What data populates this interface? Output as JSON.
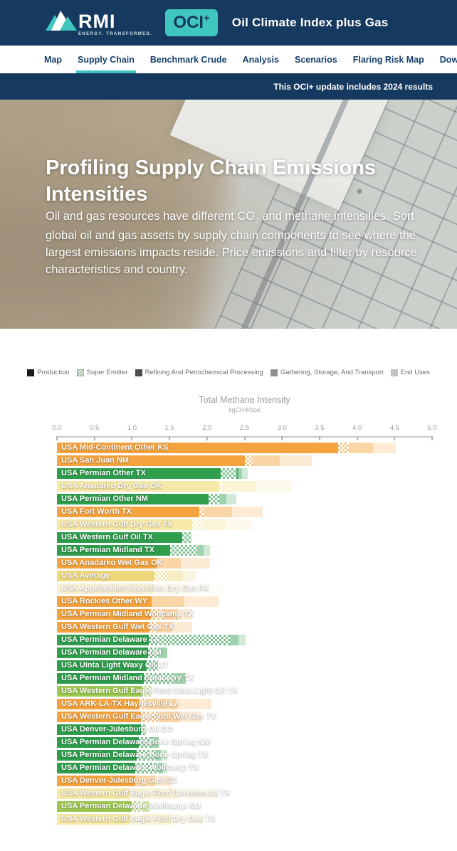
{
  "header": {
    "rmi_name": "RMI",
    "rmi_tagline": "ENERGY. TRANSFORMED.",
    "oci_badge": "OCI",
    "oci_badge_plus": "+",
    "title": "Oil Climate Index plus Gas"
  },
  "nav": {
    "items": [
      {
        "label": "Map",
        "active": false
      },
      {
        "label": "Supply Chain",
        "active": true
      },
      {
        "label": "Benchmark Crude",
        "active": false
      },
      {
        "label": "Analysis",
        "active": false
      },
      {
        "label": "Scenarios",
        "active": false
      },
      {
        "label": "Flaring Risk Map",
        "active": false
      },
      {
        "label": "Download",
        "active": false,
        "icon": "download-icon"
      }
    ]
  },
  "banner": {
    "text": "This OCI+ update includes 2024 results"
  },
  "hero": {
    "title": "Profiling Supply Chain Emissions Intensities",
    "desc_pre": "Oil and gas resources have different CO",
    "desc_sub": "2",
    "desc_post": " and methane intensities. Sort global oil and gas assets by supply chain components to see where the largest emissions impacts reside. Price emissions and filter by resource characteristics and country."
  },
  "chart_data": {
    "type": "bar",
    "orientation": "horizontal",
    "title": "Total Methane Intensity",
    "unit": "kgCH4/boe",
    "xlim": [
      0,
      5
    ],
    "x_ticks": [
      0.0,
      0.5,
      1.0,
      1.5,
      2.0,
      2.5,
      3.0,
      3.5,
      4.0,
      4.5,
      5.0
    ],
    "legend": [
      {
        "label": "Production",
        "rgb": "26,26,26",
        "pattern": "solid"
      },
      {
        "label": "Super Emitter",
        "rgb": "122,150,124",
        "pattern": "checker"
      },
      {
        "label": "Refining And Petrochemical Processing",
        "rgb": "77,77,77",
        "pattern": "solid"
      },
      {
        "label": "Gathering, Storage, And Transport",
        "rgb": "143,143,143",
        "pattern": "solid"
      },
      {
        "label": "End Uses",
        "rgb": "196,196,196",
        "pattern": "solid"
      }
    ],
    "series_labels": [
      "Production",
      "Super Emitter",
      "Refining And Petrochemical Processing",
      "Gathering, Storage, And Transport",
      "End Uses"
    ],
    "color_families": {
      "orange": "244,163,62",
      "green": "47,158,77",
      "paleYellow": "246,232,166",
      "yellow": "239,216,123",
      "cream": "250,241,213",
      "yellowGreen": "156,201,79"
    },
    "rows": [
      {
        "label": "USA Mid-Continent Other KS",
        "family": "orange",
        "values": [
          3.75,
          0.14,
          0,
          0.32,
          0.31
        ]
      },
      {
        "label": "USA San Juan NM",
        "family": "orange",
        "values": [
          2.5,
          0.11,
          0,
          0.36,
          0.43
        ]
      },
      {
        "label": "USA Permian Other TX",
        "family": "green",
        "values": [
          2.18,
          0.21,
          0.03,
          0.05,
          0.07
        ]
      },
      {
        "label": "USA Anadarko Dry Gas OK",
        "family": "paleYellow",
        "values": [
          2.16,
          0.05,
          0,
          0.45,
          0.47
        ]
      },
      {
        "label": "USA Permian Other NM",
        "family": "green",
        "values": [
          2.02,
          0.14,
          0,
          0.1,
          0.13
        ]
      },
      {
        "label": "USA Fort Worth TX",
        "family": "orange",
        "values": [
          1.9,
          0.06,
          0,
          0.37,
          0.41
        ]
      },
      {
        "label": "USA Western Gulf Dry Gas TX",
        "family": "paleYellow",
        "values": [
          1.8,
          0.16,
          0,
          0.29,
          0.34
        ]
      },
      {
        "label": "USA Western Gulf Oil TX",
        "family": "green",
        "values": [
          1.67,
          0.12,
          0,
          0,
          0
        ]
      },
      {
        "label": "USA Permian Midland TX",
        "family": "green",
        "values": [
          1.51,
          0.36,
          0,
          0.08,
          0.09
        ]
      },
      {
        "label": "USA Anadarko Wet Gas OK",
        "family": "orange",
        "values": [
          1.33,
          0,
          0,
          0.32,
          0.39
        ]
      },
      {
        "label": "USA Average",
        "family": "yellow",
        "values": [
          1.3,
          0.16,
          0,
          0.22,
          0.17
        ]
      },
      {
        "label": "USA Appalachian Marcellus Dry Gas PA",
        "family": "cream",
        "values": [
          1.28,
          0.03,
          0,
          0.45,
          0.45
        ]
      },
      {
        "label": "USA Rockies Other WY",
        "family": "orange",
        "values": [
          1.26,
          0,
          0,
          0.44,
          0.46
        ]
      },
      {
        "label": "USA Permian Midland Wolfcamp TX",
        "family": "orange",
        "values": [
          1.25,
          0.17,
          0,
          0.19,
          0.19
        ]
      },
      {
        "label": "USA Western Gulf Wet Gas TX",
        "family": "orange",
        "values": [
          1.23,
          0.12,
          0,
          0.19,
          0.26
        ]
      },
      {
        "label": "USA Permian Delaware TX",
        "family": "green",
        "values": [
          1.22,
          1.09,
          0,
          0.11,
          0.09
        ]
      },
      {
        "label": "USA Permian Delaware NM",
        "family": "green",
        "values": [
          1.21,
          0.14,
          0,
          0.12,
          0
        ]
      },
      {
        "label": "USA Uinta Light Waxy Oil UT",
        "family": "green",
        "values": [
          1.2,
          0.15,
          0,
          0,
          0
        ]
      },
      {
        "label": "USA Permian Midland Spraberry TX",
        "family": "green",
        "values": [
          1.16,
          0.41,
          0,
          0.15,
          0
        ]
      },
      {
        "label": "USA Western Gulf Eagle Ford Ultra-Light Oil TX",
        "family": "yellowGreen",
        "values": [
          1.14,
          0.12,
          0,
          0,
          0
        ]
      },
      {
        "label": "USA ARK-LA-TX Haynesville LA",
        "family": "orange",
        "values": [
          1.1,
          0.08,
          0,
          0.42,
          0.46
        ]
      },
      {
        "label": "USA Western Gulf Eagle Ford Wet Gas TX",
        "family": "orange",
        "values": [
          1.12,
          0.24,
          0,
          0.28,
          0.29
        ]
      },
      {
        "label": "USA Denver-Julesburg Oil CO",
        "family": "green",
        "values": [
          1.12,
          0.07,
          0,
          0,
          0
        ]
      },
      {
        "label": "USA Permian Delaware Bone Spring NM",
        "family": "green",
        "values": [
          1.09,
          0.17,
          0,
          0.1,
          0
        ]
      },
      {
        "label": "USA Permian Delaware Bone Spring TX",
        "family": "green",
        "values": [
          1.06,
          0.25,
          0,
          0.08,
          0.08
        ]
      },
      {
        "label": "USA Permian Delaware Wolfcamp TX",
        "family": "green",
        "values": [
          1.04,
          0.31,
          0,
          0.06,
          0.06
        ]
      },
      {
        "label": "USA Denver-Julesburg Gas CO",
        "family": "orange",
        "values": [
          1.04,
          0,
          0,
          0.27,
          0.23
        ]
      },
      {
        "label": "USA Western Gulf Eagle Ford Condensate TX",
        "family": "paleYellow",
        "values": [
          0.98,
          0.05,
          0,
          0.55,
          0.57
        ]
      },
      {
        "label": "USA Permian Delaware Wolfcamp NM",
        "family": "yellowGreen",
        "values": [
          1.0,
          0.14,
          0,
          0.09,
          0
        ]
      },
      {
        "label": "USA Western Gulf Eagle Ford Dry Gas TX",
        "family": "paleYellow",
        "values": [
          0.98,
          0.14,
          0,
          0.42,
          0.42
        ]
      }
    ]
  }
}
